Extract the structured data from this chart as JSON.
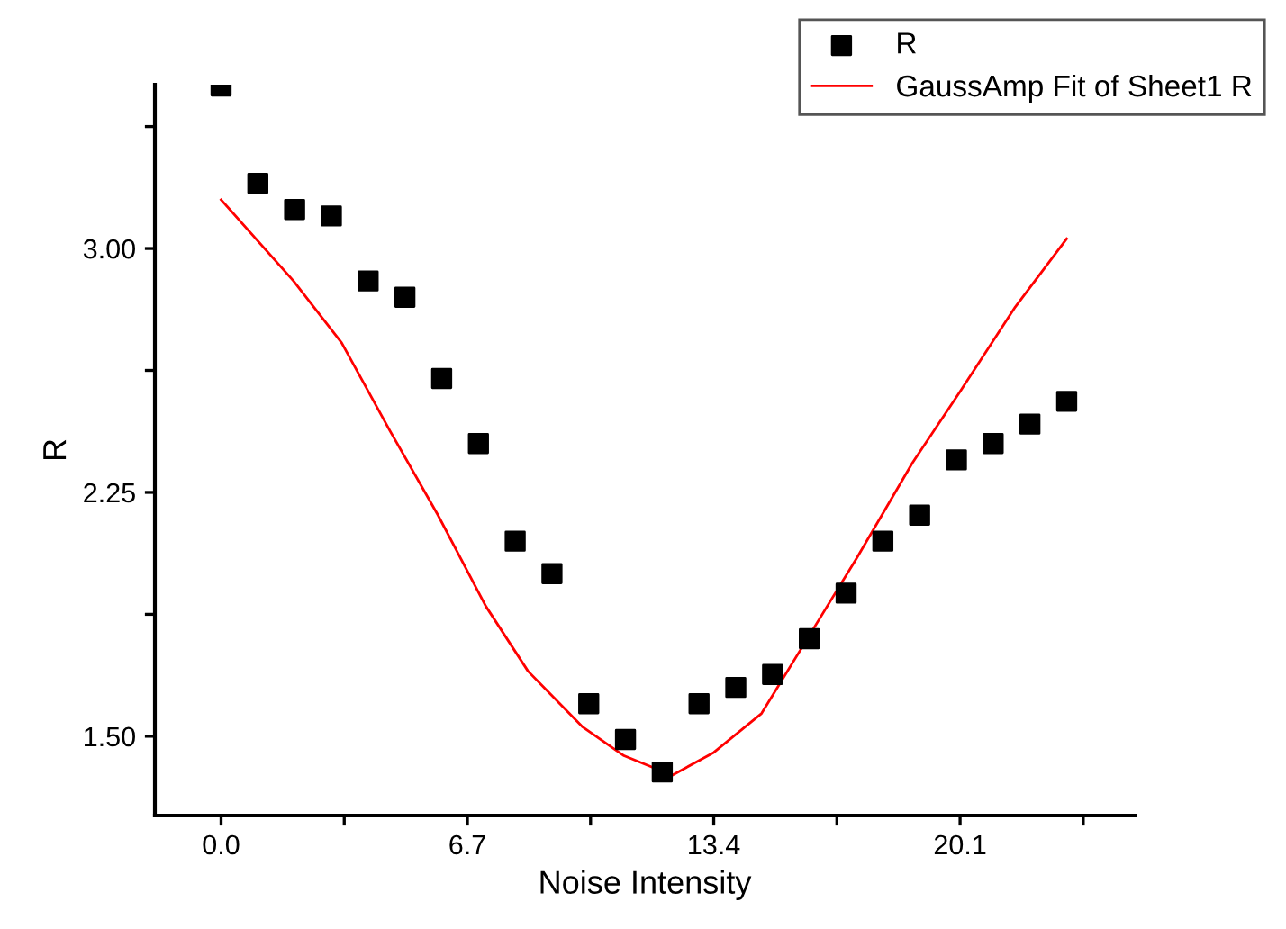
{
  "chart_data": {
    "type": "scatter",
    "xlabel": "Noise Intensity",
    "ylabel": "R",
    "xlim": [
      -1.8,
      24.85
    ],
    "ylim": [
      1.256,
      3.504
    ],
    "xticks": [
      {
        "value": 0.0,
        "label": "0.0"
      },
      {
        "value": 3.35,
        "label": null
      },
      {
        "value": 6.7,
        "label": "6.7"
      },
      {
        "value": 10.05,
        "label": null
      },
      {
        "value": 13.4,
        "label": "13.4"
      },
      {
        "value": 16.75,
        "label": null
      },
      {
        "value": 20.1,
        "label": "20.1"
      },
      {
        "value": 23.45,
        "label": null
      }
    ],
    "yticks": [
      {
        "value": 1.5,
        "label": "1.50"
      },
      {
        "value": 1.875,
        "label": null
      },
      {
        "value": 2.25,
        "label": "2.25"
      },
      {
        "value": 2.625,
        "label": null
      },
      {
        "value": 3.0,
        "label": "3.00"
      },
      {
        "value": 3.375,
        "label": null
      }
    ],
    "legend": "top right",
    "grid": false,
    "series": [
      {
        "name": "R",
        "marker": "square",
        "color": "#000000",
        "x": [
          0,
          1,
          2,
          3,
          4,
          5,
          6,
          7,
          8,
          9,
          10,
          11,
          12,
          13,
          14,
          15,
          16,
          17,
          18,
          19,
          20,
          21,
          22,
          23
        ],
        "values": [
          3.5,
          3.2,
          3.12,
          3.1,
          2.9,
          2.85,
          2.6,
          2.4,
          2.1,
          2.0,
          1.6,
          1.49,
          1.39,
          1.6,
          1.65,
          1.69,
          1.8,
          1.94,
          2.1,
          2.18,
          2.35,
          2.4,
          2.46,
          2.53
        ]
      },
      {
        "name": "GaussAmp Fit of Sheet1 R",
        "type": "line",
        "marker": "none",
        "line_style": "solid",
        "color": "#ff0000",
        "x": [
          0,
          1.97,
          3.28,
          4.59,
          5.9,
          7.2,
          8.35,
          9.82,
          10.96,
          12.27,
          13.4,
          14.7,
          16.0,
          17.3,
          18.8,
          20.1,
          21.6,
          23.0
        ],
        "values": [
          3.15,
          2.9,
          2.71,
          2.44,
          2.18,
          1.9,
          1.7,
          1.53,
          1.44,
          1.38,
          1.45,
          1.57,
          1.81,
          2.05,
          2.34,
          2.56,
          2.82,
          3.03
        ]
      }
    ]
  }
}
